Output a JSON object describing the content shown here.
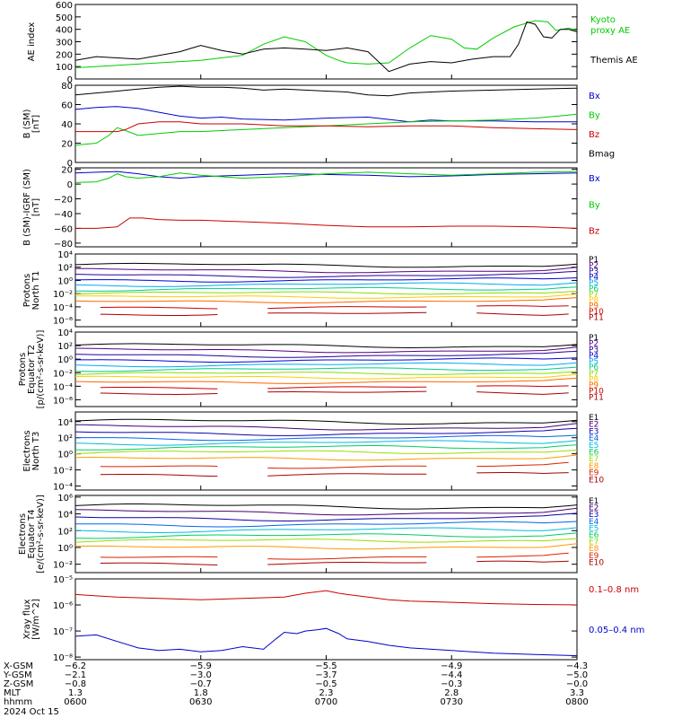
{
  "chart_data": [
    {
      "type": "line",
      "ylabel": "AE index",
      "ylim": [
        0,
        600
      ],
      "yticks": [
        "0",
        "100",
        "200",
        "300",
        "400",
        "500",
        "600"
      ],
      "scale": "linear",
      "series": [
        {
          "name": "Kyoto proxy AE",
          "label_lines": [
            "Kyoto",
            "proxy AE"
          ],
          "color": "#00cc00",
          "x": [
            0,
            10,
            20,
            30,
            40,
            45,
            50,
            55,
            60,
            63,
            65,
            70,
            75,
            80,
            85,
            90,
            93,
            96,
            100,
            105,
            110,
            113,
            115,
            118,
            120
          ],
          "y": [
            90,
            110,
            130,
            150,
            190,
            280,
            340,
            300,
            190,
            150,
            130,
            120,
            130,
            250,
            350,
            320,
            250,
            240,
            330,
            420,
            470,
            460,
            390,
            410,
            390
          ]
        },
        {
          "name": "Themis AE",
          "label_lines": [
            "Themis AE"
          ],
          "color": "#000000",
          "x": [
            0,
            5,
            10,
            15,
            20,
            25,
            28,
            30,
            35,
            40,
            45,
            50,
            55,
            60,
            65,
            70,
            75,
            80,
            85,
            90,
            95,
            100,
            104,
            106,
            108,
            110,
            112,
            114,
            116,
            118,
            120
          ],
          "y": [
            150,
            180,
            170,
            160,
            190,
            220,
            250,
            270,
            230,
            200,
            240,
            250,
            240,
            230,
            250,
            220,
            60,
            120,
            140,
            130,
            160,
            180,
            180,
            280,
            460,
            440,
            340,
            330,
            400,
            400,
            380
          ]
        }
      ]
    },
    {
      "type": "line",
      "ylabel": "B (SM)",
      "ylabel2": "[nT]",
      "ylim": [
        0,
        80
      ],
      "yticks": [
        "0",
        "20",
        "40",
        "60",
        "80"
      ],
      "scale": "linear",
      "series": [
        {
          "name": "Bx",
          "color": "#0000cc",
          "x": [
            0,
            5,
            10,
            15,
            20,
            25,
            30,
            35,
            40,
            50,
            60,
            70,
            80,
            85,
            90,
            100,
            110,
            120
          ],
          "y": [
            55,
            57,
            58,
            56,
            52,
            48,
            46,
            47,
            45,
            44,
            46,
            47,
            42,
            44,
            43,
            43,
            42,
            42
          ]
        },
        {
          "name": "By",
          "color": "#00cc00",
          "x": [
            0,
            5,
            8,
            10,
            12,
            15,
            20,
            25,
            30,
            40,
            50,
            60,
            70,
            80,
            90,
            100,
            110,
            120
          ],
          "y": [
            18,
            20,
            28,
            36,
            33,
            28,
            30,
            32,
            32,
            34,
            36,
            38,
            40,
            42,
            43,
            44,
            46,
            50
          ]
        },
        {
          "name": "Bz",
          "color": "#cc0000",
          "x": [
            0,
            5,
            10,
            12,
            15,
            20,
            25,
            30,
            40,
            50,
            60,
            70,
            80,
            90,
            100,
            110,
            120
          ],
          "y": [
            32,
            32,
            32,
            34,
            40,
            42,
            42,
            40,
            40,
            38,
            38,
            37,
            38,
            38,
            36,
            35,
            34
          ]
        },
        {
          "name": "Bmag",
          "color": "#000000",
          "x": [
            0,
            5,
            10,
            15,
            20,
            25,
            30,
            35,
            40,
            45,
            50,
            55,
            60,
            65,
            70,
            75,
            80,
            85,
            90,
            100,
            110,
            120
          ],
          "y": [
            70,
            72,
            74,
            76,
            78,
            79,
            78,
            78,
            77,
            75,
            76,
            75,
            74,
            73,
            70,
            69,
            72,
            73,
            74,
            75,
            76,
            77
          ]
        }
      ]
    },
    {
      "type": "line",
      "ylabel": "B (SM)-IGRF (SM)",
      "ylabel2": "[nT]",
      "ylim": [
        -85,
        22
      ],
      "yticks": [
        "−80",
        "−60",
        "−40",
        "−20",
        "0",
        "20"
      ],
      "ytick_values": [
        -80,
        -60,
        -40,
        -20,
        0,
        20
      ],
      "scale": "linear",
      "series": [
        {
          "name": "Bx",
          "color": "#0000cc",
          "x": [
            0,
            5,
            10,
            15,
            20,
            25,
            30,
            40,
            50,
            60,
            70,
            80,
            90,
            100,
            110,
            120
          ],
          "y": [
            15,
            16,
            17,
            14,
            10,
            8,
            10,
            12,
            14,
            13,
            12,
            10,
            11,
            13,
            14,
            15
          ]
        },
        {
          "name": "By",
          "color": "#00cc00",
          "x": [
            0,
            5,
            8,
            10,
            12,
            15,
            20,
            25,
            30,
            35,
            40,
            50,
            60,
            70,
            80,
            90,
            100,
            110,
            120
          ],
          "y": [
            2,
            3,
            8,
            14,
            10,
            8,
            10,
            15,
            12,
            10,
            8,
            10,
            14,
            16,
            14,
            12,
            14,
            16,
            17
          ]
        },
        {
          "name": "Bz",
          "color": "#cc0000",
          "x": [
            0,
            5,
            10,
            13,
            16,
            20,
            25,
            30,
            40,
            50,
            60,
            70,
            80,
            90,
            100,
            110,
            120
          ],
          "y": [
            -60,
            -60,
            -58,
            -46,
            -46,
            -48,
            -49,
            -49,
            -51,
            -53,
            -56,
            -58,
            -58,
            -57,
            -57,
            -58,
            -60
          ]
        }
      ]
    },
    {
      "type": "line",
      "ylabel": "Protons",
      "ylabel2": "North T1",
      "ylim": [
        -7,
        4
      ],
      "scale": "log",
      "yticks": [
        "10⁴",
        "10²",
        "10⁰",
        "10⁻²",
        "10⁻⁴",
        "10⁻⁶"
      ],
      "ytick_values": [
        4,
        2,
        0,
        -2,
        -4,
        -6
      ],
      "series": [
        {
          "name": "P1",
          "color": "#000000",
          "base": 2.3
        },
        {
          "name": "P2",
          "color": "#550088",
          "base": 1.5
        },
        {
          "name": "P3",
          "color": "#220099",
          "base": 0.8
        },
        {
          "name": "P4",
          "color": "#0000dd",
          "base": 0.1
        },
        {
          "name": "P5",
          "color": "#00aaee",
          "base": -0.6
        },
        {
          "name": "P6",
          "color": "#00cc88",
          "base": -1.3
        },
        {
          "name": "P7",
          "color": "#88dd00",
          "base": -1.9
        },
        {
          "name": "P8",
          "color": "#ffcc00",
          "base": -2.5
        },
        {
          "name": "P9",
          "color": "#ff6600",
          "base": -3.2
        },
        {
          "name": "P10",
          "color": "#cc0000",
          "base": -4.1
        },
        {
          "name": "P11",
          "color": "#aa0000",
          "base": -5.1
        }
      ]
    },
    {
      "type": "line",
      "ylabel": "Protons",
      "ylabel2": "Equator T2",
      "ylabel3": "[p/(cm²-s-sr-keV)]",
      "ylim": [
        -7,
        4
      ],
      "scale": "log",
      "yticks": [
        "10⁴",
        "10²",
        "10⁰",
        "10⁻²",
        "10⁻⁴",
        "10⁻⁶"
      ],
      "ytick_values": [
        4,
        2,
        0,
        -2,
        -4,
        -6
      ],
      "series": [
        {
          "name": "P1",
          "color": "#000000",
          "base": 2.0
        },
        {
          "name": "P2",
          "color": "#550088",
          "base": 1.3
        },
        {
          "name": "P3",
          "color": "#220099",
          "base": 0.6
        },
        {
          "name": "P4",
          "color": "#0000dd",
          "base": -0.1
        },
        {
          "name": "P5",
          "color": "#00aaee",
          "base": -0.8
        },
        {
          "name": "P6",
          "color": "#00cc88",
          "base": -1.5
        },
        {
          "name": "P7",
          "color": "#88dd00",
          "base": -2.1
        },
        {
          "name": "P8",
          "color": "#ffcc00",
          "base": -2.7
        },
        {
          "name": "P9",
          "color": "#ff6600",
          "base": -3.4
        },
        {
          "name": "P10",
          "color": "#cc0000",
          "base": -4.2
        },
        {
          "name": "P11",
          "color": "#aa0000",
          "base": -5.0
        }
      ]
    },
    {
      "type": "line",
      "ylabel": "Electrons",
      "ylabel2": "North T3",
      "ylim": [
        -4.5,
        5.2
      ],
      "scale": "log",
      "yticks": [
        "10⁴",
        "10²",
        "10⁰",
        "10⁻²",
        "10⁻⁴"
      ],
      "ytick_values": [
        4,
        2,
        0,
        -2,
        -4
      ],
      "series": [
        {
          "name": "E1",
          "color": "#000000",
          "base": 4.0
        },
        {
          "name": "E2",
          "color": "#440077",
          "base": 3.3
        },
        {
          "name": "E3",
          "color": "#1100aa",
          "base": 2.6
        },
        {
          "name": "E4",
          "color": "#0066ee",
          "base": 2.0
        },
        {
          "name": "E5",
          "color": "#00bbdd",
          "base": 1.4
        },
        {
          "name": "E6",
          "color": "#00cc66",
          "base": 0.8
        },
        {
          "name": "E7",
          "color": "#99dd00",
          "base": 0.2
        },
        {
          "name": "E8",
          "color": "#ff9900",
          "base": -0.6
        },
        {
          "name": "E9",
          "color": "#dd2200",
          "base": -1.6
        },
        {
          "name": "E10",
          "color": "#aa0000",
          "base": -2.6
        }
      ]
    },
    {
      "type": "line",
      "ylabel": "Electrons",
      "ylabel2": "Equator T4",
      "ylabel3": "[e/(cm²-s-sr-keV)]",
      "ylim": [
        -3,
        6.2
      ],
      "scale": "log",
      "yticks": [
        "10⁶",
        "10⁴",
        "10²",
        "10⁰",
        "10⁻²"
      ],
      "ytick_values": [
        6,
        4,
        2,
        0,
        -2
      ],
      "series": [
        {
          "name": "E1",
          "color": "#000000",
          "base": 4.9
        },
        {
          "name": "E2",
          "color": "#440077",
          "base": 4.2
        },
        {
          "name": "E3",
          "color": "#1100aa",
          "base": 3.5
        },
        {
          "name": "E4",
          "color": "#0066ee",
          "base": 2.8
        },
        {
          "name": "E5",
          "color": "#00bbdd",
          "base": 2.1
        },
        {
          "name": "E6",
          "color": "#00cc66",
          "base": 1.4
        },
        {
          "name": "E7",
          "color": "#99dd00",
          "base": 0.8
        },
        {
          "name": "E8",
          "color": "#ff9900",
          "base": 0.0
        },
        {
          "name": "E9",
          "color": "#dd2200",
          "base": -1.2
        },
        {
          "name": "E10",
          "color": "#aa0000",
          "base": -1.9
        }
      ]
    },
    {
      "type": "line",
      "ylabel": "Xray flux",
      "ylabel2": "[W/m^2]",
      "ylim": [
        -8.1,
        -5
      ],
      "scale": "log",
      "yticks": [
        "10⁻⁵",
        "10⁻⁶",
        "10⁻⁷",
        "10⁻⁸"
      ],
      "ytick_values": [
        -5,
        -6,
        -7,
        -8
      ],
      "series": [
        {
          "name": "0.1–0.8 nm",
          "color": "#cc0000",
          "x": [
            0,
            5,
            10,
            20,
            30,
            40,
            50,
            55,
            60,
            63,
            65,
            70,
            75,
            80,
            90,
            100,
            110,
            120
          ],
          "y": [
            -5.6,
            -5.65,
            -5.7,
            -5.75,
            -5.8,
            -5.75,
            -5.7,
            -5.55,
            -5.45,
            -5.55,
            -5.6,
            -5.7,
            -5.8,
            -5.85,
            -5.9,
            -5.95,
            -5.98,
            -6.0
          ]
        },
        {
          "name": "0.05–0.4 nm",
          "color": "#0000cc",
          "x": [
            0,
            5,
            10,
            15,
            20,
            25,
            30,
            35,
            40,
            45,
            48,
            50,
            53,
            55,
            58,
            60,
            63,
            65,
            70,
            75,
            80,
            90,
            100,
            110,
            120
          ],
          "y": [
            -7.2,
            -7.15,
            -7.4,
            -7.65,
            -7.75,
            -7.7,
            -7.8,
            -7.75,
            -7.6,
            -7.7,
            -7.3,
            -7.05,
            -7.1,
            -7.0,
            -6.95,
            -6.9,
            -7.1,
            -7.3,
            -7.4,
            -7.55,
            -7.65,
            -7.75,
            -7.85,
            -7.9,
            -7.95
          ]
        }
      ]
    }
  ],
  "x_axis": {
    "range": [
      0,
      120
    ],
    "rows": [
      {
        "label": "X-GSM",
        "values": [
          "−6.2",
          "−5.9",
          "−5.5",
          "−4.9",
          "−4.3"
        ]
      },
      {
        "label": "Y-GSM",
        "values": [
          "−2.1",
          "−3.0",
          "−3.7",
          "−4.4",
          "−5.0"
        ]
      },
      {
        "label": "Z-GSM",
        "values": [
          "−0.8",
          "−0.7",
          "−0.5",
          "−0.3",
          "−0.0"
        ]
      },
      {
        "label": "MLT",
        "values": [
          "1.3",
          "1.8",
          "2.3",
          "2.8",
          "3.3"
        ]
      },
      {
        "label": "hhmm",
        "values": [
          "0600",
          "0630",
          "0700",
          "0730",
          "0800"
        ]
      }
    ],
    "tick_x": [
      0,
      30,
      60,
      90,
      120
    ],
    "date": "2024 Oct 15"
  },
  "colors": {
    "axis": "#000000",
    "background": "#ffffff"
  }
}
